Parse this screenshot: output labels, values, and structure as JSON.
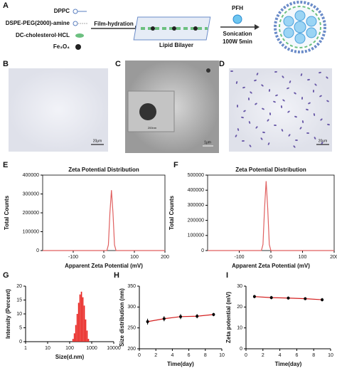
{
  "panel_letters": [
    "A",
    "B",
    "C",
    "D",
    "E",
    "F",
    "G",
    "H",
    "I"
  ],
  "scheme": {
    "components": [
      "DPPC",
      "DSPE-PEG(2000)-amine",
      "DC-cholesterol·HCL",
      "Fe₃O₄"
    ],
    "step1": "Film-hydration",
    "bilayer": "Lipid Bilayer",
    "agent": "PFH",
    "step2": [
      "Sonication",
      "100W 5min"
    ]
  },
  "micrographs": {
    "b_scale": "20μm",
    "c_scale": "1μm",
    "c_inset_scale": "200nm",
    "d_scale": "20μm"
  },
  "chart_data": [
    {
      "type": "line",
      "title": "Zeta Potential Distribution",
      "x_label": "Apparent Zeta Potential (mV)",
      "y_label": "Total Counts",
      "x": [
        -200,
        10,
        15,
        20,
        25,
        30,
        35,
        40,
        200
      ],
      "values": [
        0,
        0,
        30000,
        200000,
        320000,
        200000,
        30000,
        0,
        0
      ],
      "color": "#e06060",
      "xlim": [
        -200,
        200
      ],
      "xticks": [
        -100,
        0,
        100,
        200
      ],
      "ylim": [
        0,
        400000
      ],
      "yticks": [
        0,
        100000,
        200000,
        300000,
        400000
      ]
    },
    {
      "type": "line",
      "title": "Zeta Potential Distribution",
      "x_label": "Apparent Zeta Potential (mV)",
      "y_label": "Total Counts",
      "x": [
        -200,
        -30,
        -25,
        -20,
        -15,
        -10,
        -5,
        0,
        200
      ],
      "values": [
        0,
        0,
        40000,
        280000,
        460000,
        280000,
        40000,
        0,
        0
      ],
      "color": "#e06060",
      "xlim": [
        -200,
        200
      ],
      "xticks": [
        -100,
        0,
        100,
        200
      ],
      "ylim": [
        0,
        500000
      ],
      "yticks": [
        0,
        100000,
        200000,
        300000,
        400000,
        500000
      ]
    },
    {
      "type": "bar",
      "x_label": "Size(d.nm)",
      "y_label": "Intensity (Percent)",
      "log_x": true,
      "x": [
        142,
        164,
        190,
        220,
        255,
        295,
        342,
        396,
        459,
        531,
        615,
        712
      ],
      "values": [
        1,
        3,
        6,
        10,
        14,
        17,
        18,
        16,
        13,
        8,
        4,
        1
      ],
      "color": "#e8201c",
      "xlim": [
        1,
        10000
      ],
      "xticks": [
        1,
        10,
        100,
        1000,
        10000
      ],
      "ylim": [
        0,
        20
      ],
      "yticks": [
        0,
        5,
        10,
        15,
        20
      ]
    },
    {
      "type": "errorline",
      "x_label": "Time(day)",
      "y_label": "Size distribution (nm)",
      "x": [
        1,
        3,
        5,
        7,
        9
      ],
      "values": [
        265,
        272,
        277,
        278,
        282
      ],
      "errors": [
        7,
        6,
        6,
        5,
        4
      ],
      "color": "#d42020",
      "xlim": [
        0,
        10
      ],
      "xticks": [
        0,
        2,
        4,
        6,
        8,
        10
      ],
      "ylim": [
        200,
        350
      ],
      "yticks": [
        200,
        250,
        300,
        350
      ]
    },
    {
      "type": "errorline",
      "x_label": "Time(day)",
      "y_label": "Zeta potential (mV)",
      "x": [
        1,
        3,
        5,
        7,
        9
      ],
      "values": [
        25,
        24.5,
        24.3,
        24,
        23.5
      ],
      "errors": [
        0.8,
        0.8,
        0.7,
        0.7,
        0.8
      ],
      "color": "#d42020",
      "xlim": [
        0,
        10
      ],
      "xticks": [
        0,
        2,
        4,
        6,
        8,
        10
      ],
      "ylim": [
        0,
        30
      ],
      "yticks": [
        0,
        10,
        20,
        30
      ]
    }
  ]
}
